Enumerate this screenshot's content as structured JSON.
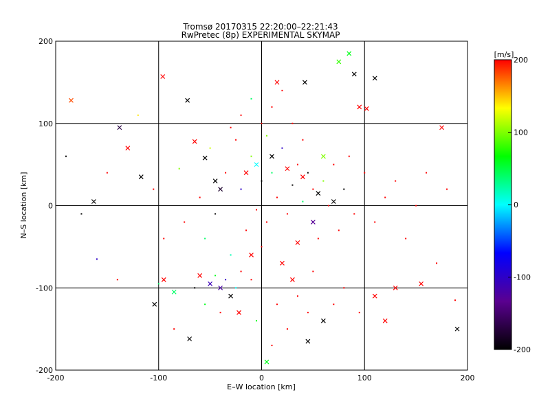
{
  "chart_data": {
    "type": "scatter",
    "title": "Tromsø 20170315 22:20:00–22:21:43",
    "subtitle": "RwPretec (8p) EXPERIMENTAL SKYMAP",
    "xlabel": "E–W location [km]",
    "ylabel": "N–S location [km]",
    "xlim": [
      -200,
      200
    ],
    "ylim": [
      -200,
      200
    ],
    "x_ticks": [
      -200,
      -100,
      0,
      100,
      200
    ],
    "y_ticks": [
      -200,
      -100,
      0,
      100,
      200
    ],
    "x_tick_labels": [
      "-200",
      "-100",
      "0",
      "100",
      "200"
    ],
    "y_tick_labels": [
      "-200",
      "-100",
      "0",
      "100",
      "200"
    ],
    "grid": true,
    "colorbar": {
      "label": "[m/s]",
      "range": [
        -200,
        200
      ],
      "ticks": [
        -200,
        -100,
        0,
        100,
        200
      ],
      "tick_labels": [
        "-200",
        "-100",
        "0",
        "100",
        "200"
      ],
      "colormap": [
        "#000000",
        "#5a0090",
        "#0000ff",
        "#00ffff",
        "#00ff00",
        "#ffff00",
        "#ff0000"
      ]
    },
    "series": [
      {
        "marker": "x",
        "points": [
          [
            -185,
            128,
            180
          ],
          [
            -163,
            5,
            -200
          ],
          [
            -138,
            95,
            -170
          ],
          [
            -130,
            70,
            200
          ],
          [
            -117,
            35,
            -200
          ],
          [
            -104,
            -120,
            -200
          ],
          [
            -96,
            157,
            200
          ],
          [
            -72,
            128,
            -200
          ],
          [
            -65,
            78,
            200
          ],
          [
            -55,
            58,
            -200
          ],
          [
            -45,
            30,
            -200
          ],
          [
            -40,
            20,
            -180
          ],
          [
            -95,
            -90,
            200
          ],
          [
            -85,
            -105,
            40
          ],
          [
            -70,
            -162,
            -200
          ],
          [
            -60,
            -85,
            200
          ],
          [
            -50,
            -95,
            -110
          ],
          [
            -40,
            -100,
            -120
          ],
          [
            -30,
            -110,
            -200
          ],
          [
            -22,
            -130,
            200
          ],
          [
            15,
            150,
            200
          ],
          [
            42,
            150,
            -200
          ],
          [
            90,
            160,
            -200
          ],
          [
            95,
            120,
            200
          ],
          [
            102,
            118,
            200
          ],
          [
            110,
            155,
            -200
          ],
          [
            85,
            185,
            60
          ],
          [
            75,
            175,
            80
          ],
          [
            130,
            -100,
            200
          ],
          [
            155,
            -95,
            200
          ],
          [
            175,
            95,
            200
          ],
          [
            190,
            -150,
            -200
          ],
          [
            120,
            -140,
            200
          ],
          [
            60,
            -140,
            -200
          ],
          [
            45,
            -165,
            -200
          ],
          [
            110,
            -110,
            200
          ],
          [
            5,
            -190,
            60
          ],
          [
            -10,
            -60,
            200
          ],
          [
            20,
            -70,
            200
          ],
          [
            30,
            -90,
            200
          ],
          [
            55,
            15,
            -200
          ],
          [
            70,
            5,
            -200
          ],
          [
            40,
            35,
            200
          ],
          [
            25,
            45,
            200
          ],
          [
            -5,
            50,
            0
          ],
          [
            -15,
            40,
            200
          ],
          [
            10,
            60,
            -200
          ],
          [
            60,
            60,
            100
          ],
          [
            50,
            -20,
            -130
          ],
          [
            35,
            -45,
            200
          ]
        ]
      },
      {
        "marker": "dot",
        "points": [
          [
            -190,
            60,
            -200
          ],
          [
            -175,
            -10,
            -200
          ],
          [
            -160,
            -65,
            -100
          ],
          [
            -150,
            40,
            200
          ],
          [
            -140,
            -90,
            200
          ],
          [
            -120,
            110,
            140
          ],
          [
            -105,
            20,
            200
          ],
          [
            -95,
            -40,
            200
          ],
          [
            -80,
            45,
            100
          ],
          [
            -75,
            -20,
            200
          ],
          [
            -60,
            10,
            200
          ],
          [
            -55,
            -40,
            40
          ],
          [
            -50,
            70,
            120
          ],
          [
            -45,
            -10,
            -200
          ],
          [
            -35,
            40,
            200
          ],
          [
            -30,
            -60,
            20
          ],
          [
            -25,
            80,
            200
          ],
          [
            -20,
            20,
            -100
          ],
          [
            -15,
            -30,
            200
          ],
          [
            -10,
            60,
            100
          ],
          [
            -5,
            -5,
            200
          ],
          [
            0,
            30,
            -200
          ],
          [
            5,
            -20,
            200
          ],
          [
            10,
            40,
            40
          ],
          [
            15,
            10,
            200
          ],
          [
            20,
            70,
            -100
          ],
          [
            25,
            -10,
            200
          ],
          [
            30,
            25,
            -200
          ],
          [
            35,
            50,
            200
          ],
          [
            40,
            5,
            40
          ],
          [
            45,
            40,
            -200
          ],
          [
            50,
            20,
            200
          ],
          [
            55,
            -40,
            200
          ],
          [
            60,
            30,
            100
          ],
          [
            65,
            0,
            200
          ],
          [
            70,
            50,
            200
          ],
          [
            75,
            -30,
            200
          ],
          [
            80,
            20,
            -200
          ],
          [
            85,
            60,
            200
          ],
          [
            90,
            -10,
            200
          ],
          [
            100,
            40,
            200
          ],
          [
            110,
            -20,
            200
          ],
          [
            120,
            10,
            200
          ],
          [
            130,
            30,
            200
          ],
          [
            140,
            -40,
            200
          ],
          [
            150,
            0,
            200
          ],
          [
            160,
            40,
            200
          ],
          [
            170,
            -70,
            200
          ],
          [
            180,
            20,
            200
          ],
          [
            188,
            -115,
            200
          ],
          [
            0,
            100,
            200
          ],
          [
            10,
            120,
            200
          ],
          [
            -10,
            130,
            40
          ],
          [
            20,
            140,
            200
          ],
          [
            5,
            85,
            100
          ],
          [
            -20,
            110,
            200
          ],
          [
            30,
            100,
            200
          ],
          [
            40,
            80,
            200
          ],
          [
            -30,
            95,
            200
          ],
          [
            15,
            -120,
            200
          ],
          [
            25,
            -150,
            200
          ],
          [
            35,
            -110,
            200
          ],
          [
            -5,
            -140,
            60
          ],
          [
            10,
            -170,
            200
          ],
          [
            45,
            -130,
            200
          ],
          [
            70,
            -120,
            200
          ],
          [
            80,
            -100,
            200
          ],
          [
            95,
            -130,
            200
          ],
          [
            -40,
            -130,
            200
          ],
          [
            -55,
            -120,
            60
          ],
          [
            -85,
            -150,
            200
          ],
          [
            -100,
            -95,
            40
          ],
          [
            -65,
            -100,
            -200
          ],
          [
            -35,
            -90,
            -100
          ],
          [
            -25,
            -100,
            0
          ],
          [
            -45,
            -85,
            60
          ],
          [
            -20,
            -80,
            200
          ],
          [
            0,
            -50,
            200
          ],
          [
            -10,
            -90,
            200
          ],
          [
            50,
            -80,
            200
          ]
        ]
      }
    ]
  }
}
